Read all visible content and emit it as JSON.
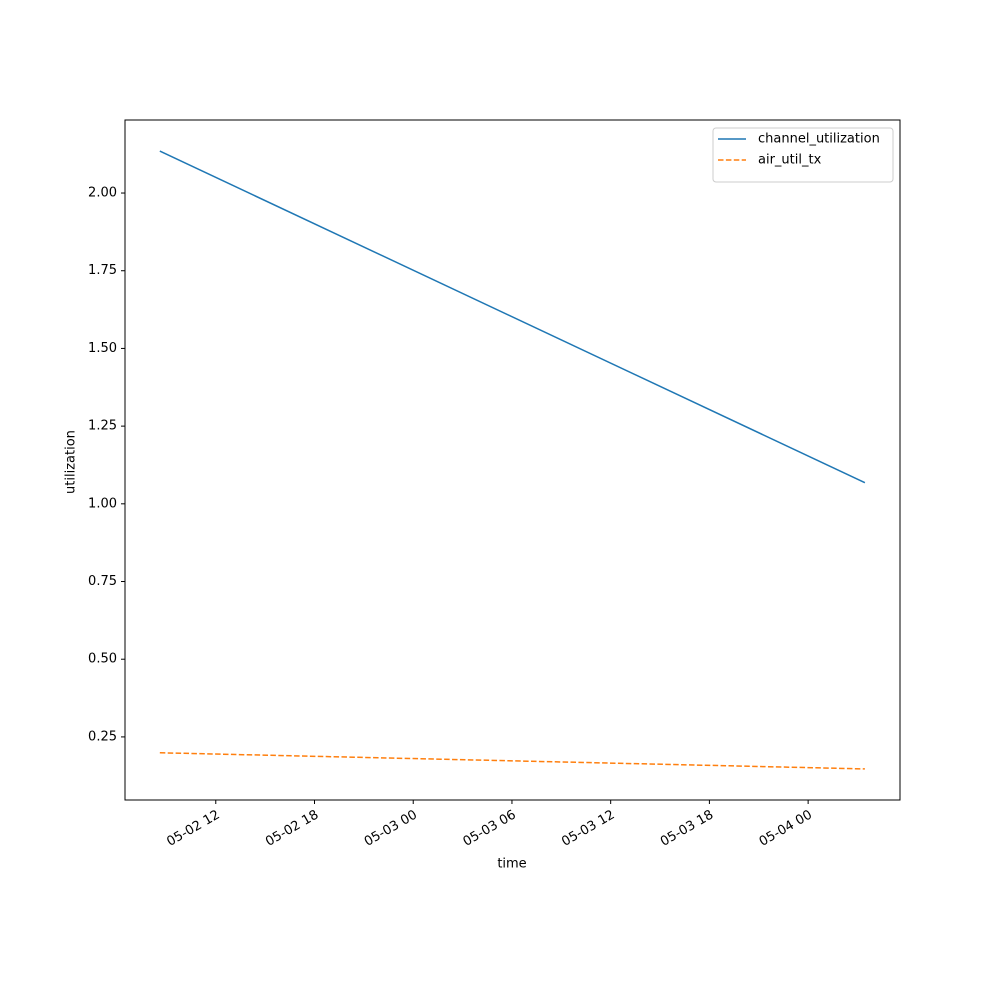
{
  "chart_data": {
    "type": "line",
    "xlabel": "time",
    "ylabel": "utilization",
    "x": [
      "05-02 08:36",
      "05-04 03:27"
    ],
    "series": [
      {
        "name": "channel_utilization",
        "color": "#1f77b4",
        "linestyle": "solid",
        "values": [
          2.135,
          1.068
        ]
      },
      {
        "name": "air_util_tx",
        "color": "#ff7f0e",
        "linestyle": "dashed",
        "values": [
          0.199,
          0.147
        ]
      }
    ],
    "xlim": [
      "05-02 06:29",
      "05-04 05:35"
    ],
    "xticks": [
      "05-02 12",
      "05-02 18",
      "05-03 00",
      "05-03 06",
      "05-03 12",
      "05-03 18",
      "05-04 00"
    ],
    "ylim": [
      0.047,
      2.235
    ],
    "yticks": [
      0.25,
      {
        "value": 0.5,
        "label": "0.50"
      },
      0.75,
      {
        "value": 1,
        "label": "1.00"
      },
      1.25,
      {
        "value": 1.5,
        "label": "1.50"
      },
      1.75,
      {
        "value": 2,
        "label": "2.00"
      }
    ],
    "grid": false,
    "legend": "upper right"
  }
}
